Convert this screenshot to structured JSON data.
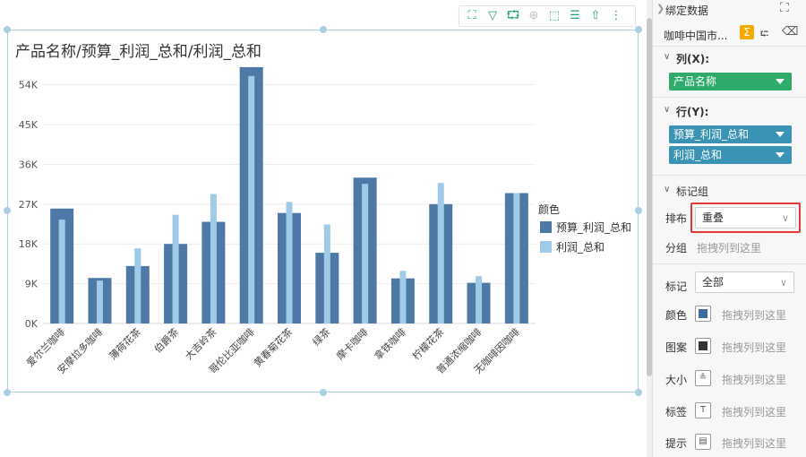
{
  "chart_data": {
    "type": "bar",
    "title": "产品名称/预算_利润_总和/利润_总和",
    "xlabel": "",
    "ylabel": "",
    "categories": [
      "爱尔兰咖啡",
      "安摩拉多咖啡",
      "薄荷花茶",
      "伯爵茶",
      "大吉岭茶",
      "哥伦比亚咖啡",
      "黄春菊花茶",
      "绿茶",
      "摩卡咖啡",
      "拿铁咖啡",
      "柠檬花茶",
      "普通浓缩咖啡",
      "无咖啡因咖啡"
    ],
    "series": [
      {
        "name": "预算_利润_总和",
        "color": "#4e79a7",
        "values": [
          26000,
          10300,
          13000,
          18000,
          23000,
          58000,
          25000,
          16000,
          33000,
          10200,
          27000,
          9200,
          29500
        ]
      },
      {
        "name": "利润_总和",
        "color": "#a0cbe8",
        "values": [
          23500,
          9700,
          17000,
          24600,
          29300,
          56000,
          27500,
          22400,
          31600,
          11900,
          31800,
          10700,
          29500
        ]
      }
    ],
    "ylim": [
      0,
      59000
    ],
    "yticks": [
      0,
      9000,
      18000,
      27000,
      36000,
      45000,
      54000
    ],
    "ytick_labels": [
      "0K",
      "9K",
      "18K",
      "27K",
      "36K",
      "45K",
      "54K"
    ],
    "grid": true,
    "legend": {
      "title": "颜色",
      "placement": "right"
    }
  },
  "panel": {
    "header": "绑定数据",
    "dataset": "咖啡中国市...",
    "columns_label": "列(X):",
    "columns_pill": "产品名称",
    "rows_label": "行(Y):",
    "rows_pills": [
      "预算_利润_总和",
      "利润_总和"
    ],
    "marks_group_label": "标记组",
    "arrange_label": "排布",
    "arrange_value": "重叠",
    "group_label": "分组",
    "drop_hint": "拖拽列到这里",
    "marks_label": "标记",
    "marks_value": "全部",
    "props": [
      {
        "label": "颜色",
        "hint": "拖拽列到这里"
      },
      {
        "label": "图案",
        "hint": "拖拽列到这里"
      },
      {
        "label": "大小",
        "hint": "拖拽列到这里"
      },
      {
        "label": "标签",
        "hint": "拖拽列到这里"
      },
      {
        "label": "提示",
        "hint": "拖拽列到这里"
      }
    ]
  },
  "colors": {
    "pill_green": "#2eab6a",
    "pill_blue": "#3a93b5",
    "highlight_red": "#e53935",
    "accent_orange": "#f2a900"
  }
}
